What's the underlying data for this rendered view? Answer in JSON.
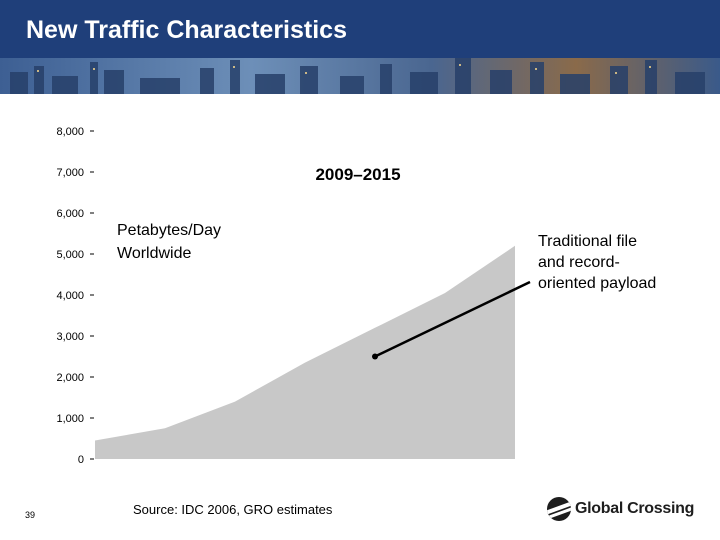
{
  "header": {
    "title": "New Traffic Characteristics",
    "background_color": "#1f3f7a"
  },
  "chart_data": {
    "type": "area",
    "title": "2009–2015",
    "ylabel_lines": [
      "Petabytes/Day",
      "Worldwide"
    ],
    "xlabel": "",
    "ylim": [
      0,
      8000
    ],
    "y_ticks": [
      {
        "value": 0,
        "label": "0"
      },
      {
        "value": 1000,
        "label": "1,000"
      },
      {
        "value": 2000,
        "label": "2,000"
      },
      {
        "value": 3000,
        "label": "3,000"
      },
      {
        "value": 4000,
        "label": "4,000"
      },
      {
        "value": 5000,
        "label": "5,000"
      },
      {
        "value": 6000,
        "label": "6,000"
      },
      {
        "value": 7000,
        "label": "7,000"
      },
      {
        "value": 8000,
        "label": "8,000"
      }
    ],
    "x_range": [
      2009,
      2015
    ],
    "series": [
      {
        "name": "Traditional file and record-oriented payload",
        "color": "#c8c8c8",
        "x": [
          2009,
          2010,
          2011,
          2012,
          2013,
          2014,
          2015
        ],
        "values": [
          450,
          750,
          1400,
          2350,
          3200,
          4050,
          5200
        ]
      }
    ],
    "annotation": {
      "lines": [
        "Traditional file",
        "and record-",
        "oriented payload"
      ],
      "points_to": {
        "x": 2013,
        "value": 2500
      }
    },
    "grid": false
  },
  "footer": {
    "slide_number": "39",
    "source": "Source: IDC 2006, GRO estimates",
    "logo_text": "Global Crossing",
    "logo_mark": "globe-icon"
  }
}
